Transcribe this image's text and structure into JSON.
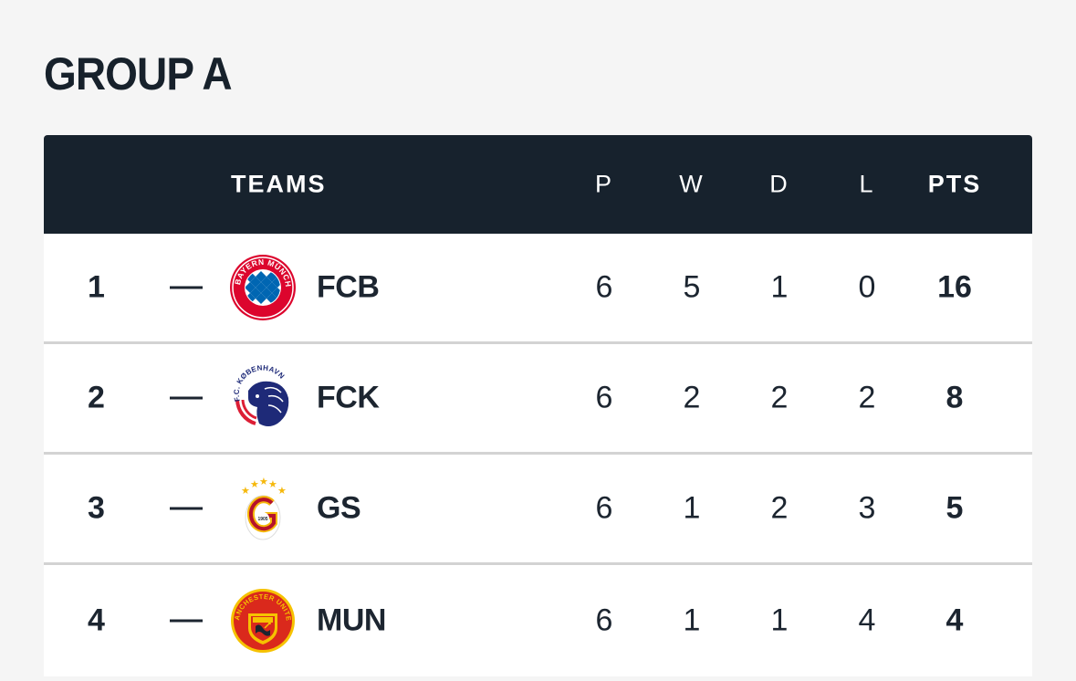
{
  "group": {
    "title": "GROUP A"
  },
  "header": {
    "teams": "TEAMS",
    "played": "P",
    "won": "W",
    "drawn": "D",
    "lost": "L",
    "points": "PTS"
  },
  "rows": [
    {
      "rank": "1",
      "movement": "—",
      "team": "FCB",
      "logo": "fc-bayern-munchen-crest",
      "logo_text": "FC BAYERN MÜNCHEN",
      "played": "6",
      "won": "5",
      "drawn": "1",
      "lost": "0",
      "points": "16"
    },
    {
      "rank": "2",
      "movement": "—",
      "team": "FCK",
      "logo": "fc-kobenhavn-lion-crest",
      "logo_text": "F.C. KØBENHAVN",
      "played": "6",
      "won": "2",
      "drawn": "2",
      "lost": "2",
      "points": "8"
    },
    {
      "rank": "3",
      "movement": "—",
      "team": "GS",
      "logo": "galatasaray-crest",
      "logo_text": "1905",
      "played": "6",
      "won": "1",
      "drawn": "2",
      "lost": "3",
      "points": "5"
    },
    {
      "rank": "4",
      "movement": "—",
      "team": "MUN",
      "logo": "manchester-united-crest",
      "logo_text": "MANCHESTER UNITED",
      "played": "6",
      "won": "1",
      "drawn": "1",
      "lost": "4",
      "points": "4"
    }
  ],
  "colors": {
    "header_bg": "#17222d",
    "page_bg": "#f5f5f5",
    "row_bg": "#ffffff",
    "divider": "#d3d3d3",
    "text": "#1c2530"
  }
}
